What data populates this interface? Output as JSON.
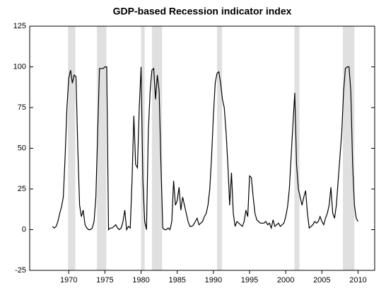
{
  "chart_data": {
    "type": "line",
    "title": "GDP-based Recession indicator index",
    "x": [
      1967.75,
      1968,
      1968.25,
      1968.5,
      1968.75,
      1969,
      1969.25,
      1969.5,
      1969.75,
      1970,
      1970.25,
      1970.5,
      1970.75,
      1971,
      1971.25,
      1971.5,
      1971.75,
      1972,
      1972.25,
      1972.5,
      1972.75,
      1973,
      1973.25,
      1973.5,
      1973.75,
      1974,
      1974.25,
      1974.5,
      1974.75,
      1975,
      1975.25,
      1975.5,
      1975.75,
      1976,
      1976.25,
      1976.5,
      1976.75,
      1977,
      1977.25,
      1977.5,
      1977.75,
      1978,
      1978.25,
      1978.5,
      1978.75,
      1979,
      1979.25,
      1979.5,
      1979.75,
      1980,
      1980.25,
      1980.5,
      1980.75,
      1981,
      1981.25,
      1981.5,
      1981.75,
      1982,
      1982.25,
      1982.5,
      1982.75,
      1983,
      1983.25,
      1983.5,
      1983.75,
      1984,
      1984.25,
      1984.5,
      1984.75,
      1985,
      1985.25,
      1985.5,
      1985.75,
      1986,
      1986.25,
      1986.5,
      1986.75,
      1987,
      1987.25,
      1987.5,
      1987.75,
      1988,
      1988.25,
      1988.5,
      1988.75,
      1989,
      1989.25,
      1989.5,
      1989.75,
      1990,
      1990.25,
      1990.5,
      1990.75,
      1991,
      1991.25,
      1991.5,
      1991.75,
      1992,
      1992.25,
      1992.5,
      1992.75,
      1993,
      1993.25,
      1993.5,
      1993.75,
      1994,
      1994.25,
      1994.5,
      1994.75,
      1995,
      1995.25,
      1995.5,
      1995.75,
      1996,
      1996.25,
      1996.5,
      1996.75,
      1997,
      1997.25,
      1997.5,
      1997.75,
      1998,
      1998.25,
      1998.5,
      1998.75,
      1999,
      1999.25,
      1999.5,
      1999.75,
      2000,
      2000.25,
      2000.5,
      2000.75,
      2001,
      2001.25,
      2001.5,
      2001.75,
      2002,
      2002.25,
      2002.5,
      2002.75,
      2003,
      2003.25,
      2003.5,
      2003.75,
      2004,
      2004.25,
      2004.5,
      2004.75,
      2005,
      2005.25,
      2005.5,
      2005.75,
      2006,
      2006.25,
      2006.5,
      2006.75,
      2007,
      2007.25,
      2007.5,
      2007.75,
      2008,
      2008.25,
      2008.5,
      2008.75,
      2009,
      2009.25,
      2009.5,
      2009.75,
      2010
    ],
    "values": [
      2,
      1,
      2,
      5,
      10,
      14,
      20,
      45,
      75,
      93,
      98,
      90,
      95,
      94,
      50,
      15,
      8,
      12,
      3,
      1,
      0,
      0,
      1,
      5,
      20,
      60,
      99,
      99,
      99,
      100,
      100,
      0,
      1,
      1,
      2,
      3,
      1,
      0,
      1,
      5,
      12,
      0,
      2,
      1,
      30,
      70,
      40,
      38,
      75,
      100,
      30,
      5,
      0,
      60,
      85,
      98,
      99,
      80,
      95,
      85,
      40,
      1,
      0,
      0,
      1,
      0,
      5,
      30,
      15,
      18,
      26,
      12,
      20,
      15,
      10,
      5,
      2,
      2,
      3,
      5,
      7,
      3,
      4,
      5,
      8,
      10,
      15,
      25,
      45,
      70,
      90,
      96,
      97,
      90,
      80,
      75,
      60,
      40,
      15,
      35,
      10,
      2,
      5,
      4,
      3,
      2,
      5,
      12,
      8,
      33,
      32,
      20,
      10,
      6,
      5,
      4,
      4,
      4,
      5,
      3,
      4,
      1,
      6,
      2,
      3,
      4,
      2,
      3,
      4,
      8,
      14,
      25,
      45,
      65,
      84,
      40,
      25,
      20,
      15,
      20,
      24,
      10,
      1,
      2,
      3,
      5,
      4,
      5,
      8,
      5,
      3,
      7,
      10,
      15,
      26,
      10,
      7,
      15,
      30,
      45,
      60,
      85,
      99,
      100,
      100,
      85,
      40,
      15,
      7,
      5
    ],
    "color": "#000000",
    "shaded_periods": [
      [
        1969.9,
        1970.9
      ],
      [
        1973.9,
        1975.2
      ],
      [
        1980.0,
        1980.5
      ],
      [
        1981.5,
        1982.9
      ],
      [
        1990.5,
        1991.2
      ],
      [
        2001.2,
        2001.9
      ],
      [
        2007.9,
        2009.5
      ]
    ],
    "shade_color": "#e0e0e0",
    "xlim": [
      1964.6,
      2012.3
    ],
    "xticks": [
      1970,
      1975,
      1980,
      1985,
      1990,
      1995,
      2000,
      2005,
      2010
    ],
    "ylim": [
      -25,
      125
    ],
    "yticks": [
      -25,
      0,
      25,
      50,
      75,
      100,
      125
    ]
  }
}
